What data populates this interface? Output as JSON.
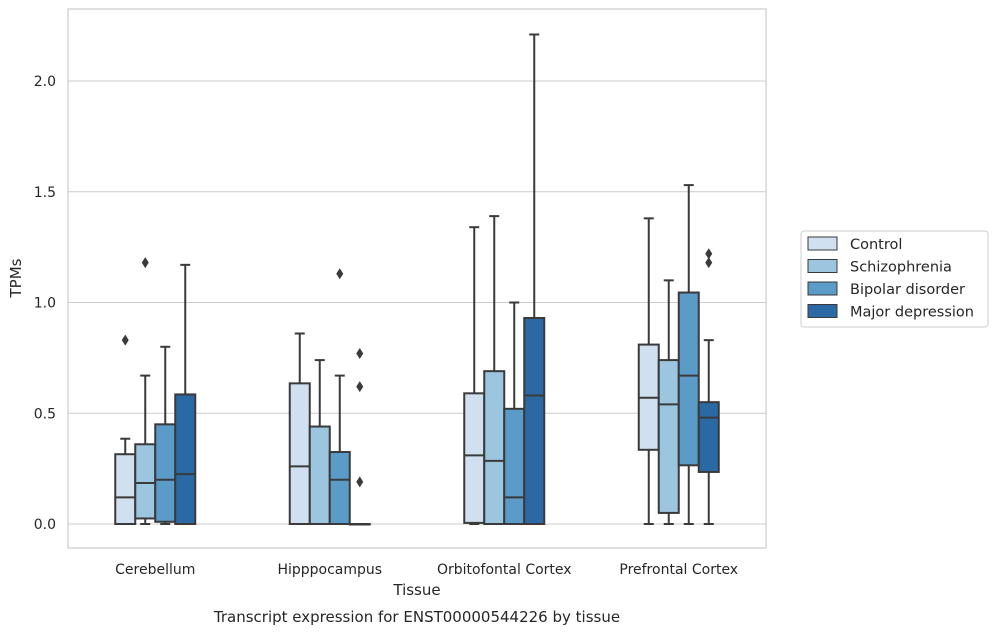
{
  "chart_data": {
    "type": "boxplot",
    "caption": "Transcript expression for ENST00000544226 by tissue",
    "xlabel": "Tissue",
    "ylabel": "TPMs",
    "ylim": [
      -0.11,
      2.33
    ],
    "yticks": [
      "0.0",
      "0.5",
      "1.0",
      "1.5",
      "2.0"
    ],
    "grid": true,
    "legend_position": "right",
    "categories": [
      "Cerebellum",
      "Hipppocampus",
      "Orbitofontal Cortex",
      "Prefrontal Cortex"
    ],
    "series": [
      {
        "name": "Control",
        "color": "#d0e0f1",
        "boxes": [
          {
            "whislo": 0.0,
            "q1": 0.0,
            "med": 0.12,
            "q3": 0.315,
            "whishi": 0.385,
            "fliers": [
              0.83
            ]
          },
          {
            "whislo": 0.0,
            "q1": 0.0,
            "med": 0.26,
            "q3": 0.635,
            "whishi": 0.86,
            "fliers": []
          },
          {
            "whislo": 0.0,
            "q1": 0.005,
            "med": 0.31,
            "q3": 0.59,
            "whishi": 1.34,
            "fliers": []
          },
          {
            "whislo": 0.0,
            "q1": 0.335,
            "med": 0.57,
            "q3": 0.81,
            "whishi": 1.38,
            "fliers": []
          }
        ]
      },
      {
        "name": "Schizophrenia",
        "color": "#9cc5df",
        "boxes": [
          {
            "whislo": 0.0,
            "q1": 0.025,
            "med": 0.185,
            "q3": 0.36,
            "whishi": 0.67,
            "fliers": [
              1.18
            ]
          },
          {
            "whislo": 0.0,
            "q1": 0.0,
            "med": 0.0,
            "q3": 0.44,
            "whishi": 0.74,
            "fliers": []
          },
          {
            "whislo": 0.0,
            "q1": 0.0,
            "med": 0.285,
            "q3": 0.69,
            "whishi": 1.39,
            "fliers": []
          },
          {
            "whislo": 0.0,
            "q1": 0.05,
            "med": 0.54,
            "q3": 0.74,
            "whishi": 1.1,
            "fliers": []
          }
        ]
      },
      {
        "name": "Bipolar disorder",
        "color": "#5a9bc8",
        "boxes": [
          {
            "whislo": 0.0,
            "q1": 0.01,
            "med": 0.2,
            "q3": 0.45,
            "whishi": 0.8,
            "fliers": []
          },
          {
            "whislo": 0.0,
            "q1": 0.0,
            "med": 0.2,
            "q3": 0.325,
            "whishi": 0.67,
            "fliers": [
              1.13
            ]
          },
          {
            "whislo": 0.0,
            "q1": 0.0,
            "med": 0.12,
            "q3": 0.52,
            "whishi": 1.0,
            "fliers": []
          },
          {
            "whislo": 0.0,
            "q1": 0.265,
            "med": 0.67,
            "q3": 1.045,
            "whishi": 1.53,
            "fliers": []
          }
        ]
      },
      {
        "name": "Major depression",
        "color": "#2b69a5",
        "boxes": [
          {
            "whislo": 0.0,
            "q1": 0.0,
            "med": 0.225,
            "q3": 0.585,
            "whishi": 1.17,
            "fliers": []
          },
          {
            "whislo": 0.0,
            "q1": 0.0,
            "med": 0.0,
            "q3": 0.0,
            "whishi": 0.0,
            "fliers": [
              0.19,
              0.62,
              0.77
            ]
          },
          {
            "whislo": 0.0,
            "q1": 0.0,
            "med": 0.58,
            "q3": 0.93,
            "whishi": 2.21,
            "fliers": []
          },
          {
            "whislo": 0.0,
            "q1": 0.235,
            "med": 0.48,
            "q3": 0.55,
            "whishi": 0.83,
            "fliers": [
              1.18,
              1.22
            ]
          }
        ]
      }
    ]
  }
}
